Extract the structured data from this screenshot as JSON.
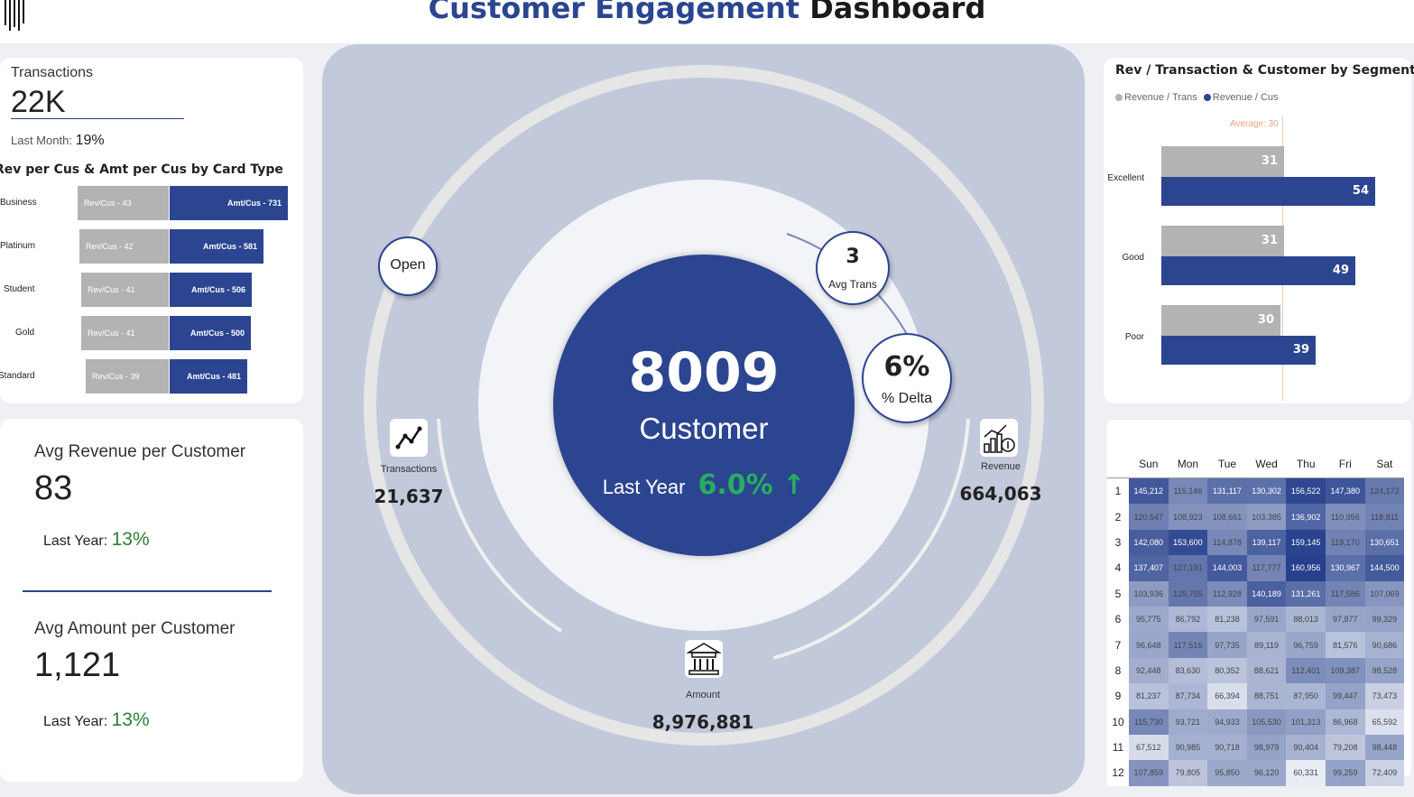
{
  "header": {
    "title_accent": "Customer Engagement",
    "title_rest": "Dashboard"
  },
  "transactions_card": {
    "label": "Transactions",
    "value": "22K",
    "last_month_label": "Last Month:",
    "last_month_value": "19%"
  },
  "card_type_chart": {
    "title": "Rev per Cus & Amt per Cus by Card Type"
  },
  "chart_data": {
    "type": "bar",
    "title": "Rev per Cus & Amt per Cus by Card Type",
    "categories": [
      "Business",
      "Platinum",
      "Student",
      "Gold",
      "Standard"
    ],
    "series": [
      {
        "name": "Rev/Cus",
        "values": [
          43,
          42,
          41,
          41,
          39
        ]
      },
      {
        "name": "Amt/Cus",
        "values": [
          731,
          581,
          506,
          500,
          481
        ]
      }
    ],
    "labels": {
      "rev": [
        "Rev/Cus - 43",
        "Rev/Cus - 42",
        "Rev/Cus - 41",
        "Rev/Cus - 41",
        "Rev/Cus - 39"
      ],
      "amt": [
        "Amt/Cus -  731",
        "Amt/Cus -  581",
        "Amt/Cus -  506",
        "Amt/Cus -  500",
        "Amt/Cus -  481"
      ]
    }
  },
  "kpis": {
    "avg_revenue_label": "Avg Revenue per Customer",
    "avg_revenue_value": "83",
    "avg_revenue_ly_label": "Last Year:",
    "avg_revenue_ly_value": "13%",
    "avg_amount_label": "Avg Amount per Customer",
    "avg_amount_value": "1,121",
    "avg_amount_ly_label": "Last Year:",
    "avg_amount_ly_value": "13%"
  },
  "center": {
    "customer_count": "8009",
    "customer_label": "Customer",
    "last_year_label": "Last Year",
    "last_year_value": "6.0% ↑",
    "open_label": "Open",
    "avg_trans_value": "3",
    "avg_trans_label": "Avg Trans",
    "delta_value": "6%",
    "delta_label": "% Delta",
    "transactions_label": "Transactions",
    "transactions_value": "21,637",
    "revenue_label": "Revenue",
    "revenue_value": "664,063",
    "amount_label": "Amount",
    "amount_value": "8,976,881",
    "icons": [
      "line-chart-icon",
      "revenue-growth-icon",
      "bank-icon"
    ]
  },
  "segment_chart": {
    "title": "Rev / Transaction & Customer by Segment",
    "legend": [
      "Revenue / Trans",
      "Revenue / Cus"
    ],
    "average_label": "Average: 30",
    "categories": [
      "Excellent",
      "Good",
      "Poor"
    ],
    "rev_trans": [
      31,
      31,
      30
    ],
    "rev_cus": [
      54,
      49,
      39
    ],
    "colors": {
      "gray": "#b3b3b3",
      "blue": "#2b4590"
    }
  },
  "heatmap": {
    "days": [
      "Sun",
      "Mon",
      "Tue",
      "Wed",
      "Thu",
      "Fri",
      "Sat"
    ],
    "rows": [
      [
        "1",
        "145,212",
        "115,146",
        "131,117",
        "130,302",
        "156,522",
        "147,380",
        "124,172"
      ],
      [
        "2",
        "120,547",
        "108,923",
        "108,661",
        "103,385",
        "136,902",
        "110,956",
        "118,811"
      ],
      [
        "3",
        "142,080",
        "153,600",
        "114,878",
        "139,117",
        "159,145",
        "119,170",
        "130,651"
      ],
      [
        "4",
        "137,407",
        "127,191",
        "144,003",
        "117,777",
        "160,956",
        "130,967",
        "144,500"
      ],
      [
        "5",
        "103,936",
        "125,755",
        "112,928",
        "140,189",
        "131,261",
        "117,586",
        "107,069"
      ],
      [
        "6",
        "95,775",
        "86,792",
        "81,238",
        "97,591",
        "88,013",
        "97,877",
        "99,329"
      ],
      [
        "7",
        "96,648",
        "117,515",
        "97,735",
        "89,119",
        "96,759",
        "81,576",
        "90,686"
      ],
      [
        "8",
        "92,448",
        "83,630",
        "80,352",
        "88,621",
        "112,401",
        "109,387",
        "98,528"
      ],
      [
        "9",
        "81,237",
        "87,734",
        "66,394",
        "88,751",
        "87,950",
        "99,447",
        "73,473"
      ],
      [
        "10",
        "115,730",
        "93,721",
        "94,933",
        "105,530",
        "101,313",
        "86,968",
        "65,592"
      ],
      [
        "11",
        "67,512",
        "90,985",
        "90,718",
        "98,979",
        "90,404",
        "79,208",
        "98,448"
      ],
      [
        "12",
        "107,859",
        "79,805",
        "95,850",
        "96,120",
        "60,331",
        "99,259",
        "72,409"
      ]
    ]
  }
}
